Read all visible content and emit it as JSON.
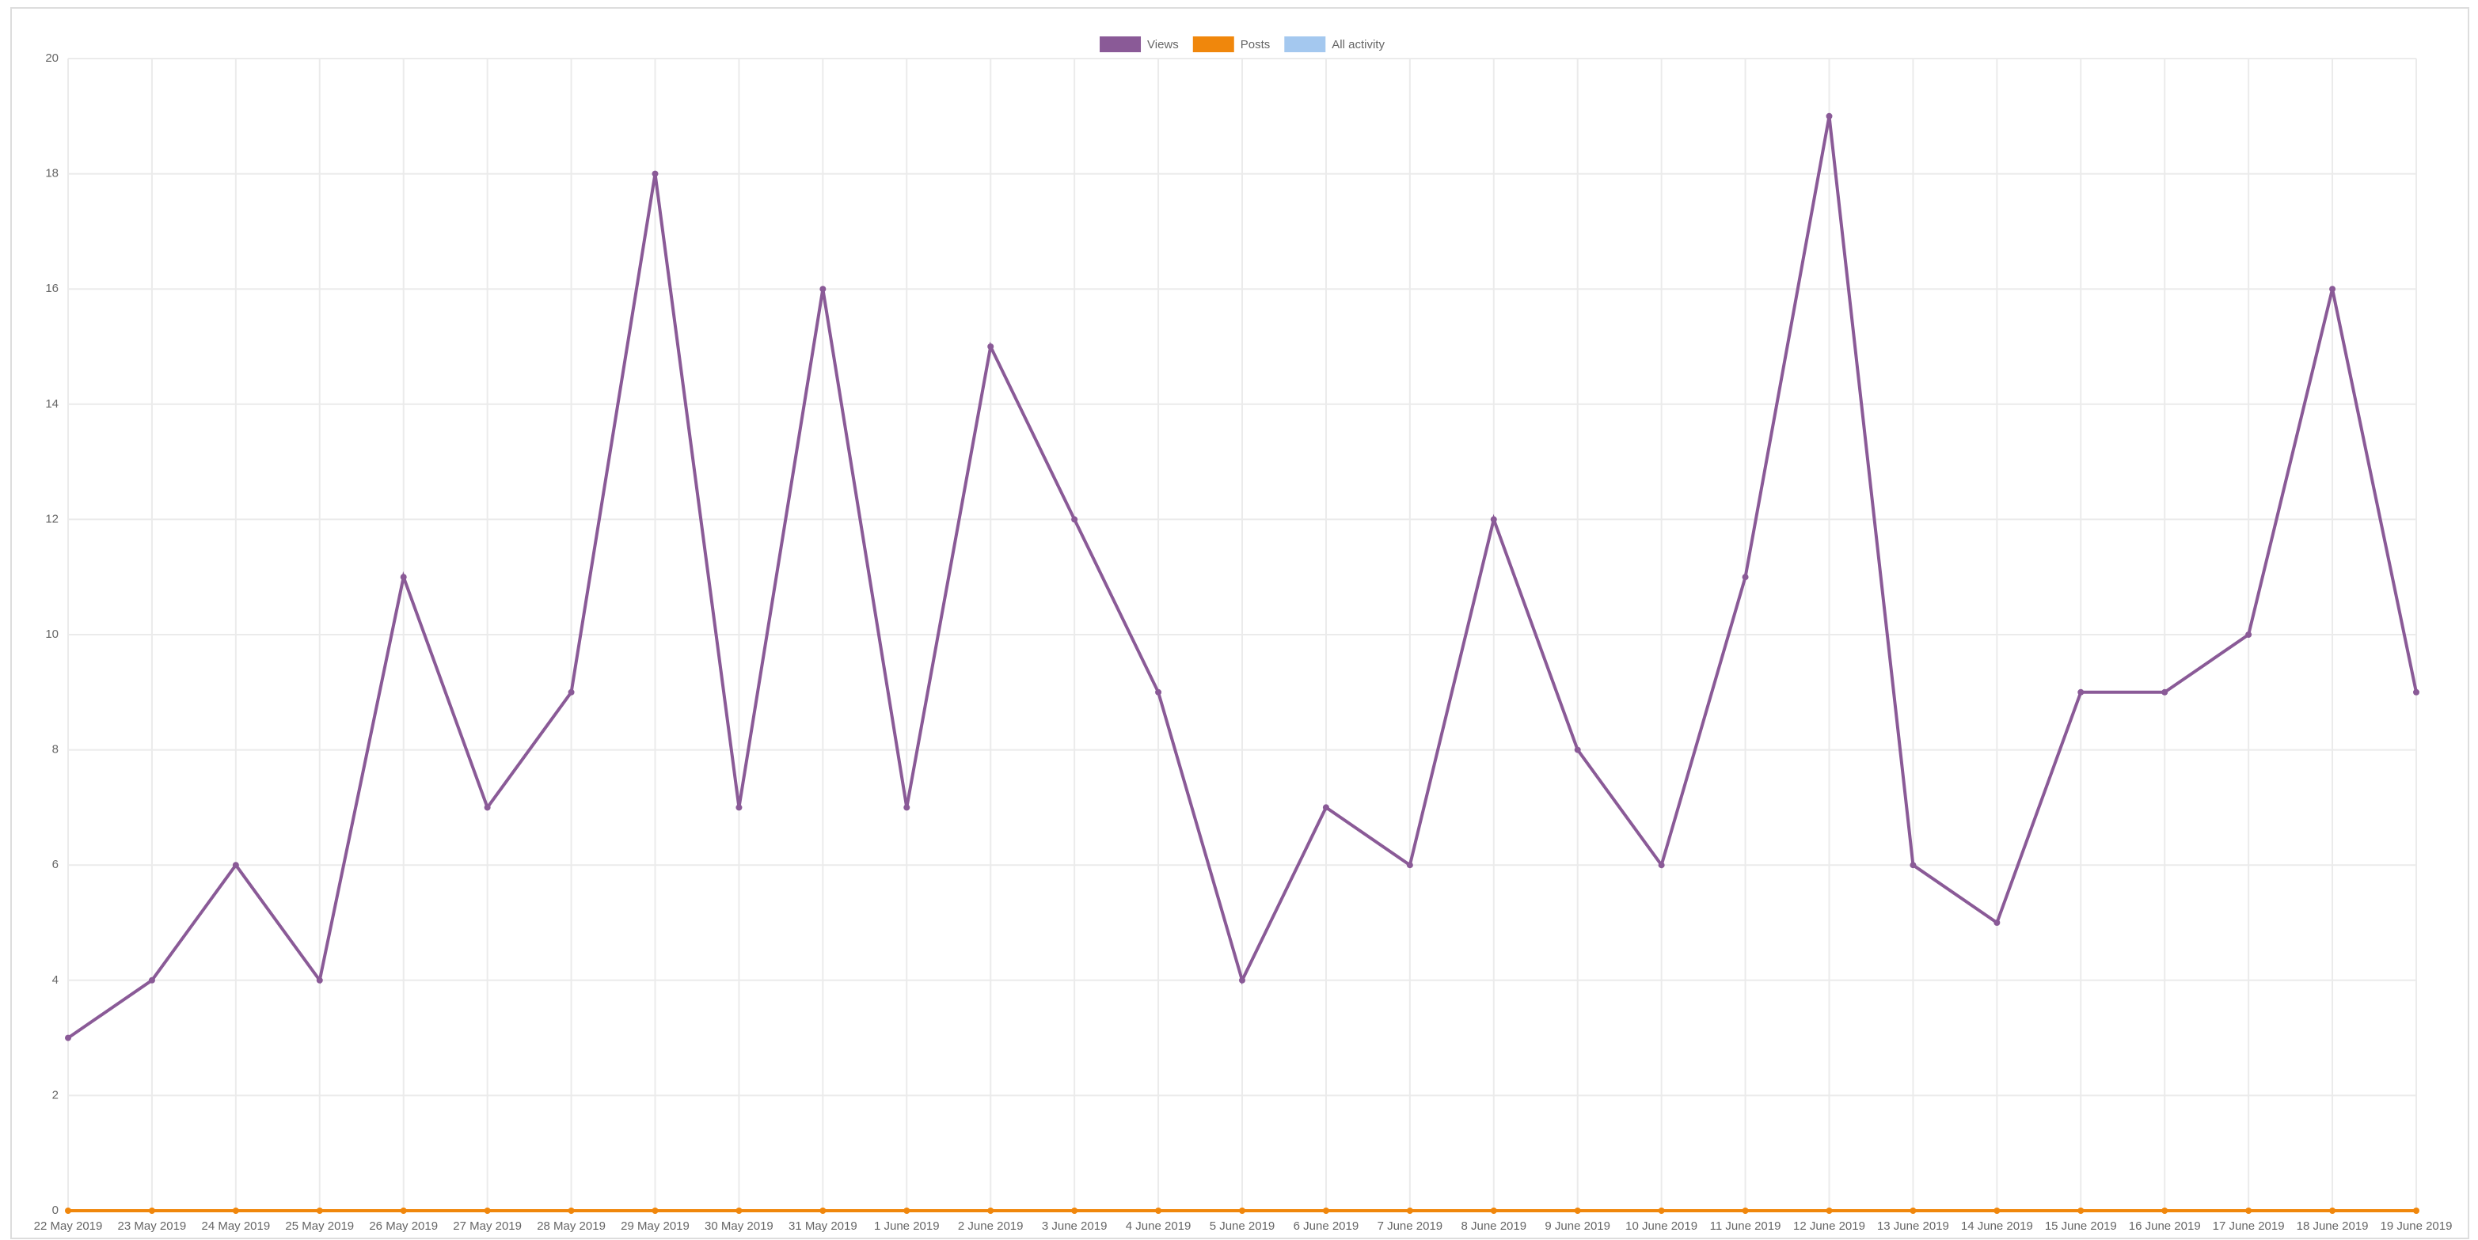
{
  "chart_data": {
    "type": "line",
    "categories": [
      "22 May 2019",
      "23 May 2019",
      "24 May 2019",
      "25 May 2019",
      "26 May 2019",
      "27 May 2019",
      "28 May 2019",
      "29 May 2019",
      "30 May 2019",
      "31 May 2019",
      "1 June 2019",
      "2 June 2019",
      "3 June 2019",
      "4 June 2019",
      "5 June 2019",
      "6 June 2019",
      "7 June 2019",
      "8 June 2019",
      "9 June 2019",
      "10 June 2019",
      "11 June 2019",
      "12 June 2019",
      "13 June 2019",
      "14 June 2019",
      "15 June 2019",
      "16 June 2019",
      "17 June 2019",
      "18 June 2019",
      "19 June 2019"
    ],
    "series": [
      {
        "name": "Views",
        "color": "#8a5a97",
        "values": [
          3,
          4,
          6,
          4,
          11,
          7,
          9,
          18,
          7,
          16,
          7,
          15,
          12,
          9,
          4,
          7,
          6,
          12,
          8,
          6,
          11,
          19,
          6,
          5,
          9,
          9,
          10,
          16,
          9
        ]
      },
      {
        "name": "Posts",
        "color": "#f0870c",
        "values": [
          0,
          0,
          0,
          0,
          0,
          0,
          0,
          0,
          0,
          0,
          0,
          0,
          0,
          0,
          0,
          0,
          0,
          0,
          0,
          0,
          0,
          0,
          0,
          0,
          0,
          0,
          0,
          0,
          0
        ]
      },
      {
        "name": "All activity",
        "color": "#a4c8ef",
        "values": [
          null,
          null,
          null,
          null,
          null,
          null,
          null,
          null,
          null,
          null,
          null,
          null,
          null,
          null,
          null,
          null,
          null,
          null,
          null,
          null,
          null,
          null,
          null,
          null,
          null,
          null,
          null,
          null,
          null
        ]
      }
    ],
    "ylim": [
      0,
      20
    ],
    "yticks": [
      0,
      2,
      4,
      6,
      8,
      10,
      12,
      14,
      16,
      18,
      20
    ],
    "grid": true,
    "legend": "top"
  }
}
